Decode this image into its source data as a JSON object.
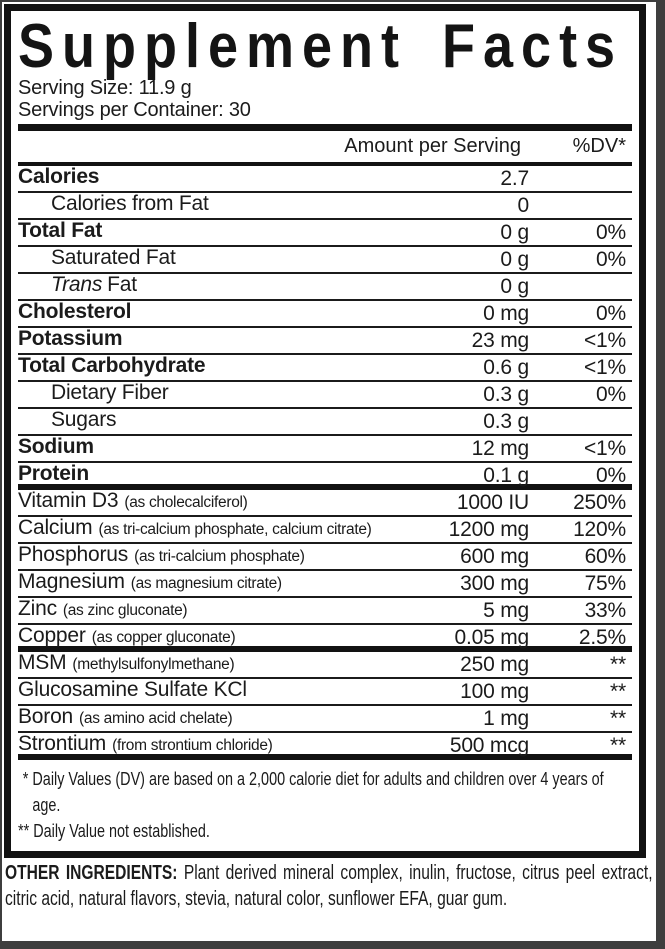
{
  "label": {
    "title": "Supplement Facts",
    "serving_size": "Serving Size: 11.9 g",
    "servings_per_container": "Servings per Container: 30",
    "columns": {
      "amount": "Amount per Serving",
      "dv": "%DV*"
    },
    "rows": [
      {
        "name": "Calories",
        "amount": "2.7",
        "dv": "",
        "bold": true
      },
      {
        "name": "Calories from Fat",
        "amount": "0",
        "dv": "",
        "indent": true
      },
      {
        "name": "Total Fat",
        "amount": "0 g",
        "dv": "0%",
        "bold": true
      },
      {
        "name": "Saturated Fat",
        "amount": "0 g",
        "dv": "0%",
        "indent": true
      },
      {
        "name_italic": "Trans",
        "name": "Fat",
        "amount": "0 g",
        "dv": "",
        "indent": true
      },
      {
        "name": "Cholesterol",
        "amount": "0 mg",
        "dv": "0%",
        "bold": true
      },
      {
        "name": "Potassium",
        "amount": "23 mg",
        "dv": "<1%",
        "bold": true
      },
      {
        "name": "Total Carbohydrate",
        "amount": "0.6 g",
        "dv": "<1%",
        "bold": true
      },
      {
        "name": "Dietary Fiber",
        "amount": "0.3 g",
        "dv": "0%",
        "indent": true
      },
      {
        "name": "Sugars",
        "amount": "0.3 g",
        "dv": "",
        "indent": true
      },
      {
        "name": "Sodium",
        "amount": "12 mg",
        "dv": "<1%",
        "bold": true
      },
      {
        "name": "Protein",
        "amount": "0.1 g",
        "dv": "0%",
        "bold": true,
        "thick_divider_after": true
      },
      {
        "name": "Vitamin D3",
        "desc": "(as cholecalciferol)",
        "amount": "1000 IU",
        "dv": "250%"
      },
      {
        "name": "Calcium",
        "desc": "(as tri-calcium phosphate, calcium citrate)",
        "amount": "1200 mg",
        "dv": "120%"
      },
      {
        "name": "Phosphorus",
        "desc": "(as tri-calcium phosphate)",
        "amount": "600 mg",
        "dv": "60%"
      },
      {
        "name": "Magnesium",
        "desc": "(as magnesium citrate)",
        "amount": "300 mg",
        "dv": "75%"
      },
      {
        "name": "Zinc",
        "desc": "(as zinc gluconate)",
        "amount": "5 mg",
        "dv": "33%"
      },
      {
        "name": "Copper",
        "desc": "(as copper gluconate)",
        "amount": "0.05 mg",
        "dv": "2.5%",
        "thick_divider_after": true
      },
      {
        "name": "MSM",
        "desc": "(methylsulfonylmethane)",
        "amount": "250 mg",
        "dv": "**"
      },
      {
        "name": "Glucosamine Sulfate KCl",
        "amount": "100 mg",
        "dv": "**"
      },
      {
        "name": "Boron",
        "desc": "(as amino acid chelate)",
        "amount": "1 mg",
        "dv": "**"
      },
      {
        "name": "Strontium",
        "desc": "(from strontium chloride)",
        "amount": "500 mcg",
        "dv": "**",
        "thick_divider_after": true
      }
    ],
    "footnotes": [
      "* Daily Values (DV) are based on a 2,000 calorie diet for adults and children over 4 years of age.",
      "** Daily Value not established."
    ],
    "other_ingredients": {
      "lead": "OTHER INGREDIENTS:",
      "text": "Plant derived mineral complex, inulin, fructose, citrus peel extract, citric acid, natural flavors, stevia, natural color, sunflower EFA, guar gum."
    },
    "colors": {
      "ink": "#1b1b1b",
      "frame": "#3e3e3e",
      "background": "#ffffff"
    }
  }
}
